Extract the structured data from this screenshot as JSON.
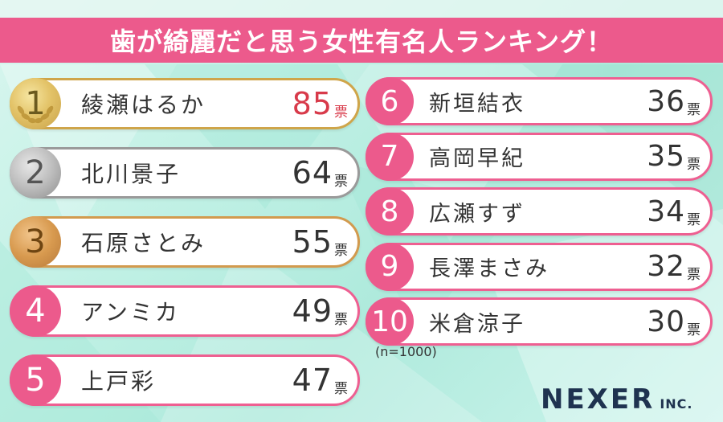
{
  "title": "歯が綺麗だと思う女性有名人ランキング！",
  "note": "(n=1000)",
  "logo": {
    "brand": "NEXER",
    "suffix": "INC."
  },
  "colors": {
    "accent": "#ec5a8c",
    "highlight": "#d83a4a",
    "gold": "#cfa54a",
    "silver": "#9a9a9a",
    "bronze": "#d29a4e"
  },
  "chart_data": {
    "type": "table",
    "unit": "票",
    "ranking": [
      {
        "rank": "1",
        "name": "綾瀬はるか",
        "votes": "85"
      },
      {
        "rank": "2",
        "name": "北川景子",
        "votes": "64"
      },
      {
        "rank": "3",
        "name": "石原さとみ",
        "votes": "55"
      },
      {
        "rank": "4",
        "name": "アンミカ",
        "votes": "49"
      },
      {
        "rank": "5",
        "name": "上戸彩",
        "votes": "47"
      },
      {
        "rank": "6",
        "name": "新垣結衣",
        "votes": "36"
      },
      {
        "rank": "7",
        "name": "高岡早紀",
        "votes": "35"
      },
      {
        "rank": "8",
        "name": "広瀬すず",
        "votes": "34"
      },
      {
        "rank": "9",
        "name": "長澤まさみ",
        "votes": "32"
      },
      {
        "rank": "10",
        "name": "米倉涼子",
        "votes": "30"
      }
    ]
  }
}
